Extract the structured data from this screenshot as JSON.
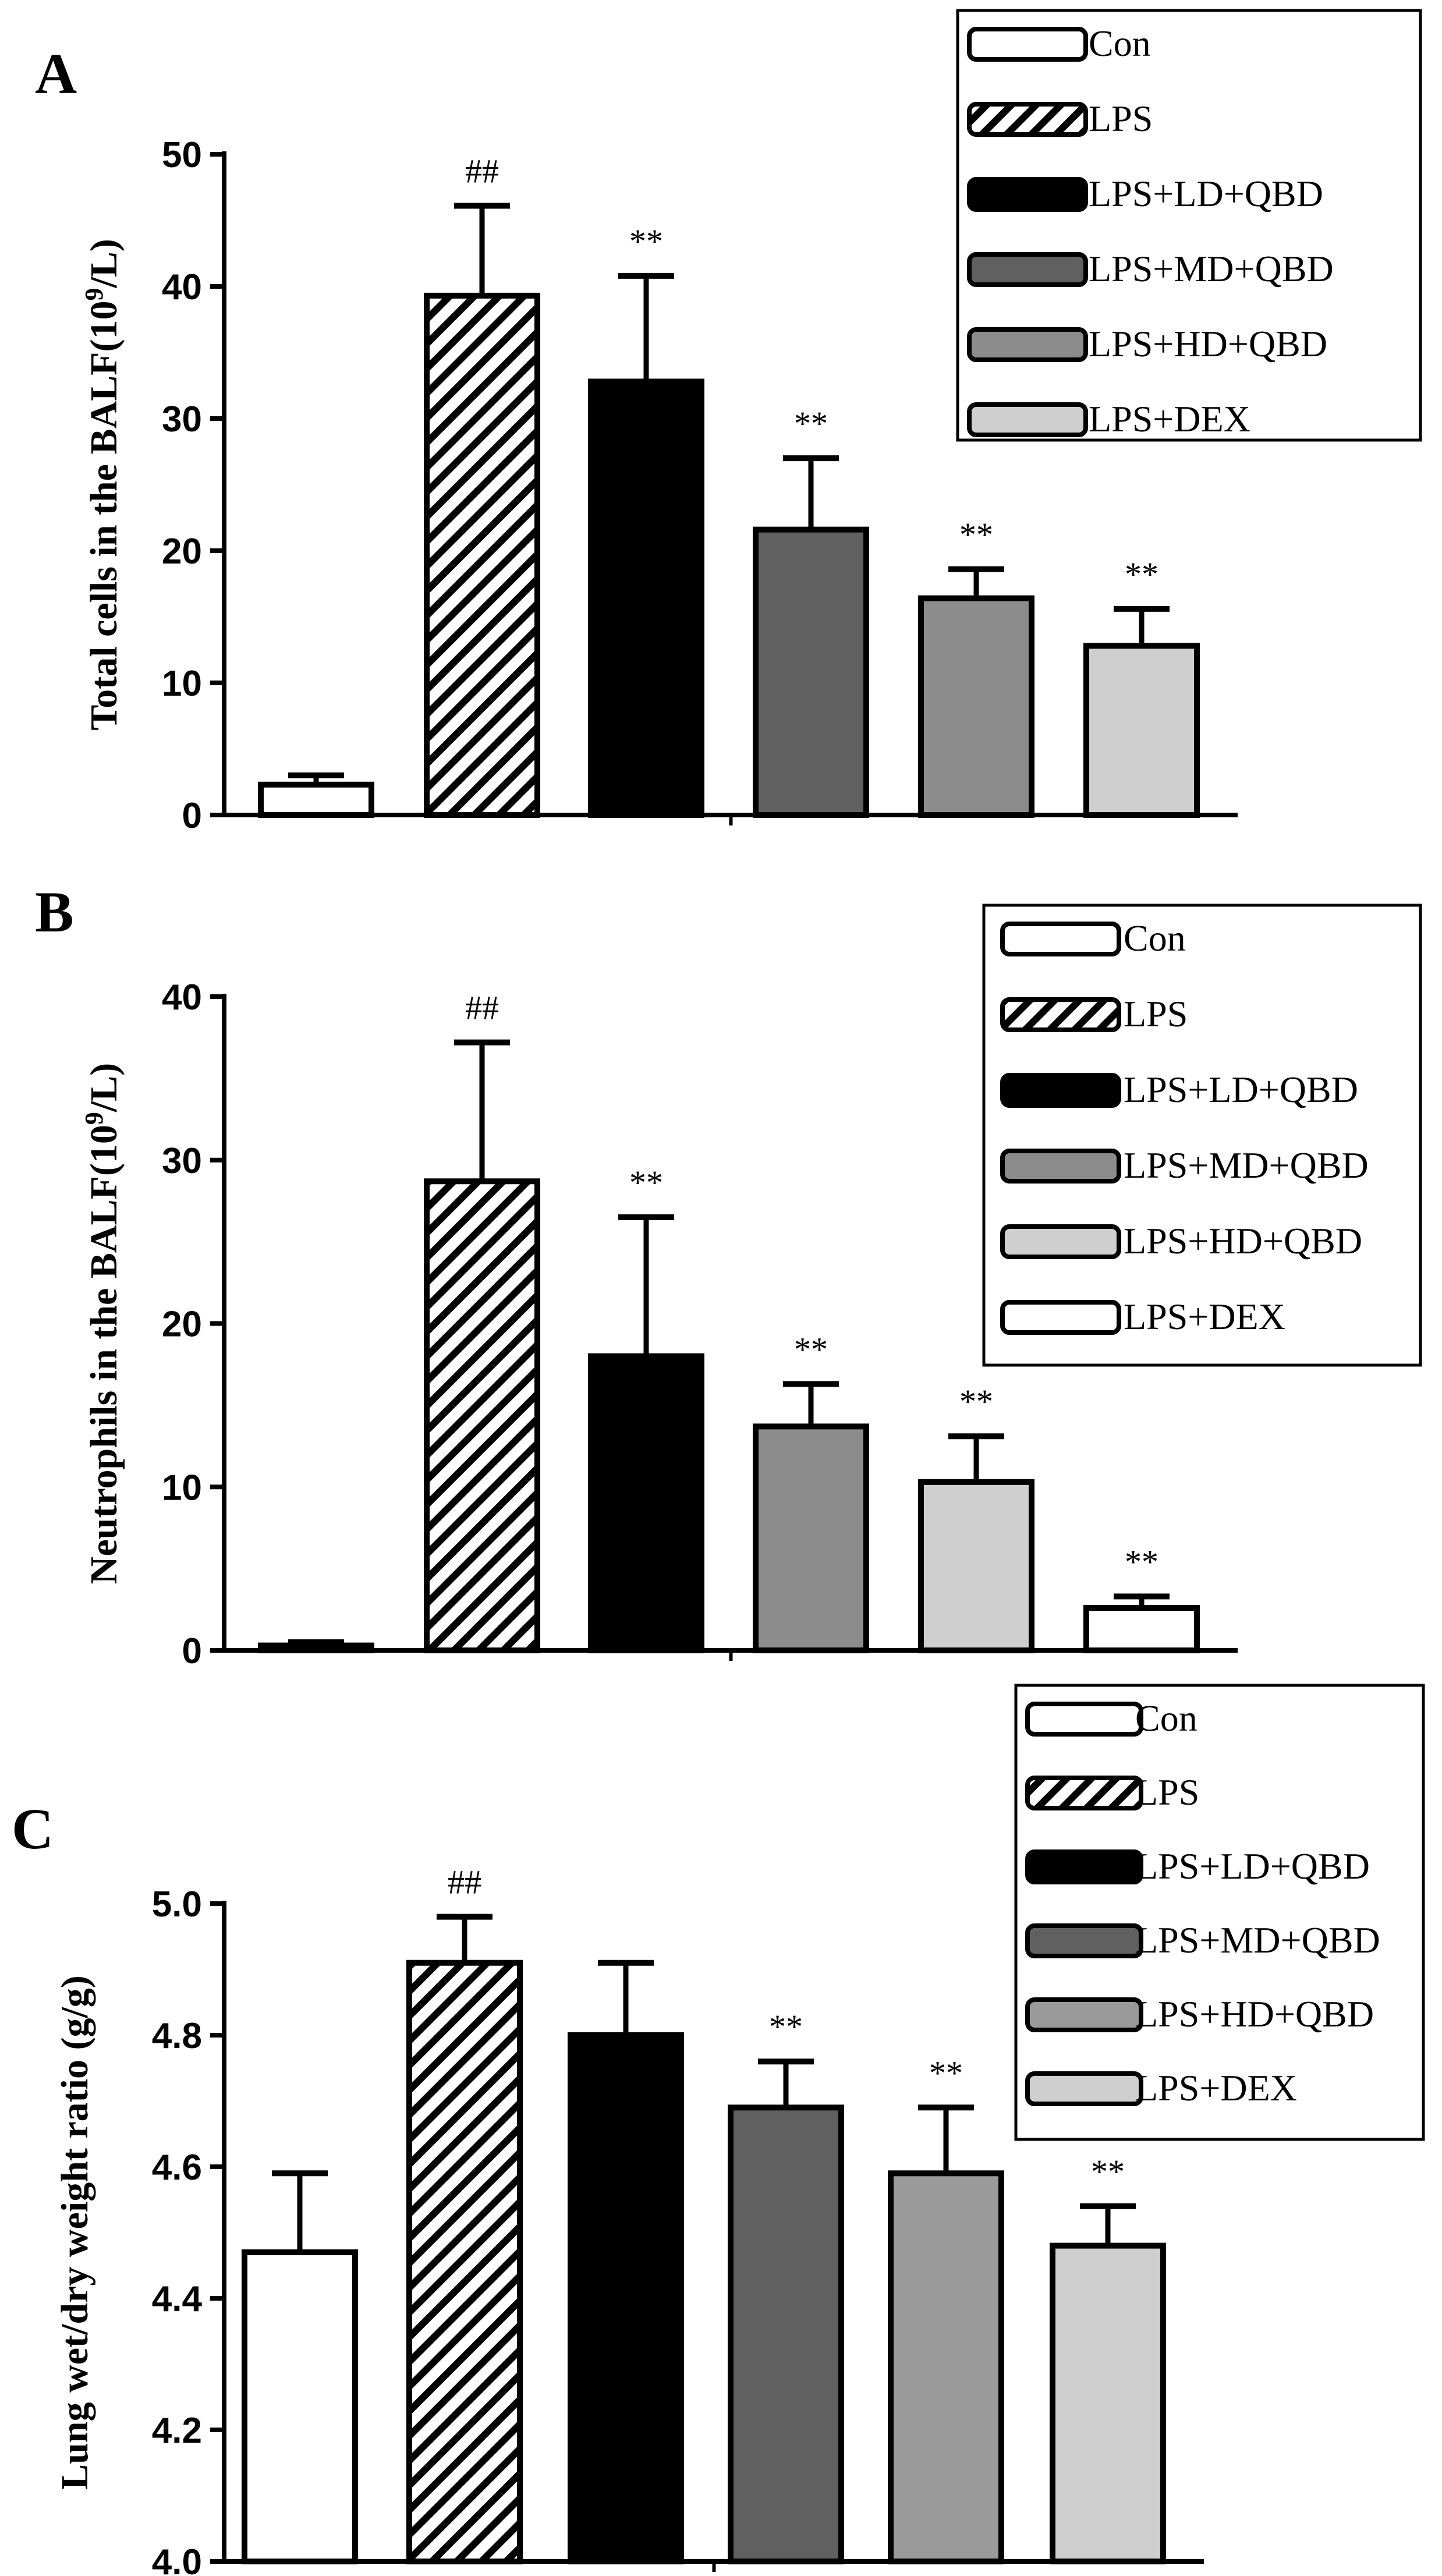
{
  "colors": {
    "white": "#ffffff",
    "black": "#000000",
    "dark_gray": "#606060",
    "mid_gray": "#8c8c8c",
    "gray": "#9a9a9a",
    "light_gray": "#cfcfcf"
  },
  "chart_data": [
    {
      "type": "bar",
      "panel_label": "A",
      "ylabel_parts": [
        "Total cells in the BALF(10",
        "9",
        "/L)"
      ],
      "categories": [
        "Con",
        "LPS",
        "LPS+LD+QBD",
        "LPS+MD+QBD",
        "LPS+HD+QBD",
        "LPS+DEX"
      ],
      "values": [
        2.3,
        39.3,
        32.8,
        21.6,
        16.4,
        12.8
      ],
      "errors": [
        0.7,
        6.8,
        8.0,
        5.4,
        2.2,
        2.8
      ],
      "annotations": [
        "",
        "##",
        "**",
        "**",
        "**",
        "**"
      ],
      "fills": [
        "white",
        "hatch",
        "black",
        "dark_gray",
        "mid_gray",
        "light_gray"
      ],
      "ylim": [
        0,
        50
      ],
      "yticks": [
        0,
        10,
        20,
        30,
        40,
        50
      ],
      "tick_labels": [
        "0",
        "10",
        "20",
        "30",
        "40",
        "50"
      ],
      "legend": {
        "placement": "top-right",
        "entries": [
          {
            "label": "Con",
            "fill": "white"
          },
          {
            "label": "LPS",
            "fill": "hatch"
          },
          {
            "label": "LPS+LD+QBD",
            "fill": "black"
          },
          {
            "label": "LPS+MD+QBD",
            "fill": "dark_gray"
          },
          {
            "label": "LPS+HD+QBD",
            "fill": "mid_gray"
          },
          {
            "label": "LPS+DEX",
            "fill": "light_gray"
          }
        ]
      }
    },
    {
      "type": "bar",
      "panel_label": "B",
      "ylabel_parts": [
        "Neutrophils in the BALF(10",
        "9",
        "/L)"
      ],
      "categories": [
        "Con",
        "LPS",
        "LPS+LD+QBD",
        "LPS+MD+QBD",
        "LPS+HD+QBD",
        "LPS+DEX"
      ],
      "values": [
        0.3,
        28.7,
        18.0,
        13.7,
        10.3,
        2.6
      ],
      "errors": [
        0.2,
        8.5,
        8.5,
        2.6,
        2.8,
        0.7
      ],
      "annotations": [
        "",
        "##",
        "**",
        "**",
        "**",
        "**"
      ],
      "fills": [
        "white",
        "hatch",
        "black",
        "mid_gray",
        "light_gray",
        "white"
      ],
      "ylim": [
        0,
        40
      ],
      "yticks": [
        0,
        10,
        20,
        30,
        40
      ],
      "tick_labels": [
        "0",
        "10",
        "20",
        "30",
        "40"
      ],
      "legend": {
        "placement": "top-right",
        "entries": [
          {
            "label": "Con",
            "fill": "white"
          },
          {
            "label": "LPS",
            "fill": "hatch"
          },
          {
            "label": "LPS+LD+QBD",
            "fill": "black"
          },
          {
            "label": "LPS+MD+QBD",
            "fill": "mid_gray"
          },
          {
            "label": "LPS+HD+QBD",
            "fill": "light_gray"
          },
          {
            "label": "LPS+DEX",
            "fill": "white"
          }
        ]
      }
    },
    {
      "type": "bar",
      "panel_label": "C",
      "ylabel_parts": [
        "Lung wet/dry weight ratio (g/g)"
      ],
      "categories": [
        "Con",
        "LPS",
        "LPS+LD+QBD",
        "LPS+MD+QBD",
        "LPS+HD+QBD",
        "LPS+DEX"
      ],
      "values": [
        4.47,
        4.91,
        4.8,
        4.69,
        4.59,
        4.48
      ],
      "errors": [
        0.12,
        0.07,
        0.11,
        0.07,
        0.1,
        0.06
      ],
      "annotations": [
        "",
        "##",
        "",
        "**",
        "**",
        "**"
      ],
      "fills": [
        "white",
        "hatch",
        "black",
        "dark_gray",
        "gray",
        "light_gray"
      ],
      "ylim": [
        4.0,
        5.0
      ],
      "yticks": [
        4.0,
        4.2,
        4.4,
        4.6,
        4.8,
        5.0
      ],
      "tick_labels": [
        "4.0",
        "4.2",
        "4.4",
        "4.6",
        "4.8",
        "5.0"
      ],
      "legend": {
        "placement": "top-right",
        "entries": [
          {
            "label": "Con",
            "fill": "white"
          },
          {
            "label": "LPS",
            "fill": "hatch"
          },
          {
            "label": "LPS+LD+QBD",
            "fill": "black"
          },
          {
            "label": "LPS+MD+QBD",
            "fill": "dark_gray"
          },
          {
            "label": "LPS+HD+QBD",
            "fill": "gray"
          },
          {
            "label": "LPS+DEX",
            "fill": "light_gray"
          }
        ]
      }
    }
  ]
}
